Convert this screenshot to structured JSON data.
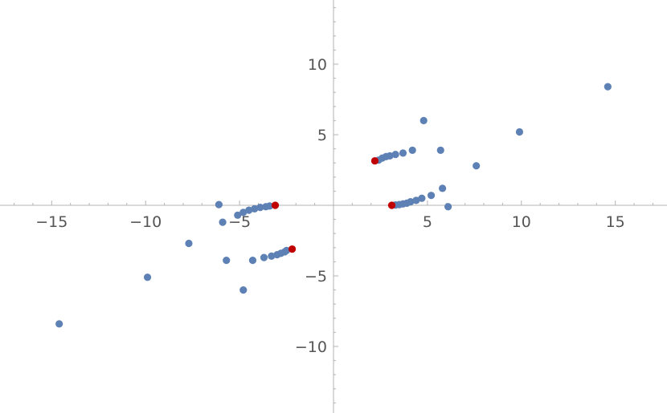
{
  "chart_data": {
    "type": "scatter",
    "title": "",
    "xlabel": "",
    "ylabel": "",
    "xlim": [
      -17.7,
      17.7
    ],
    "ylim": [
      -14.5,
      14.5
    ],
    "grid": false,
    "x_ticks": [
      {
        "value": -15,
        "label": "−15"
      },
      {
        "value": -10,
        "label": "−10"
      },
      {
        "value": -5,
        "label": "−5"
      },
      {
        "value": 5,
        "label": "5"
      },
      {
        "value": 10,
        "label": "10"
      },
      {
        "value": 15,
        "label": "15"
      }
    ],
    "y_ticks": [
      {
        "value": -10,
        "label": "−10"
      },
      {
        "value": -5,
        "label": "−5"
      },
      {
        "value": 5,
        "label": "5"
      },
      {
        "value": 10,
        "label": "10"
      }
    ],
    "series": [
      {
        "color": "#5e81b5",
        "points": [
          [
            14.6,
            8.4
          ],
          [
            9.9,
            5.2
          ],
          [
            7.6,
            2.8
          ],
          [
            5.7,
            3.9
          ],
          [
            4.8,
            6.0
          ],
          [
            4.2,
            3.9
          ],
          [
            3.7,
            3.7
          ],
          [
            3.3,
            3.6
          ],
          [
            3.0,
            3.5
          ],
          [
            2.8,
            3.45
          ],
          [
            2.6,
            3.35
          ],
          [
            2.4,
            3.2
          ],
          [
            6.1,
            -0.1
          ],
          [
            5.8,
            1.2
          ],
          [
            5.2,
            0.7
          ],
          [
            4.7,
            0.5
          ],
          [
            4.4,
            0.35
          ],
          [
            4.1,
            0.25
          ],
          [
            3.9,
            0.15
          ],
          [
            3.7,
            0.1
          ],
          [
            3.5,
            0.05
          ],
          [
            3.3,
            0.02
          ],
          [
            -6.1,
            0.05
          ],
          [
            -5.9,
            -1.2
          ],
          [
            -5.1,
            -0.7
          ],
          [
            -4.8,
            -0.5
          ],
          [
            -4.5,
            -0.35
          ],
          [
            -4.2,
            -0.25
          ],
          [
            -3.9,
            -0.15
          ],
          [
            -3.6,
            -0.1
          ],
          [
            -3.4,
            -0.05
          ],
          [
            -7.7,
            -2.7
          ],
          [
            -5.7,
            -3.9
          ],
          [
            -4.3,
            -3.9
          ],
          [
            -3.7,
            -3.7
          ],
          [
            -3.3,
            -3.6
          ],
          [
            -3.0,
            -3.5
          ],
          [
            -2.8,
            -3.4
          ],
          [
            -2.6,
            -3.3
          ],
          [
            -2.5,
            -3.2
          ],
          [
            -4.8,
            -6.0
          ],
          [
            -9.9,
            -5.1
          ],
          [
            -14.6,
            -8.4
          ]
        ]
      },
      {
        "color": "#c00000",
        "points": [
          [
            2.2,
            3.15
          ],
          [
            3.1,
            0.0
          ],
          [
            -3.1,
            0.0
          ],
          [
            -2.2,
            -3.1
          ]
        ]
      }
    ]
  }
}
